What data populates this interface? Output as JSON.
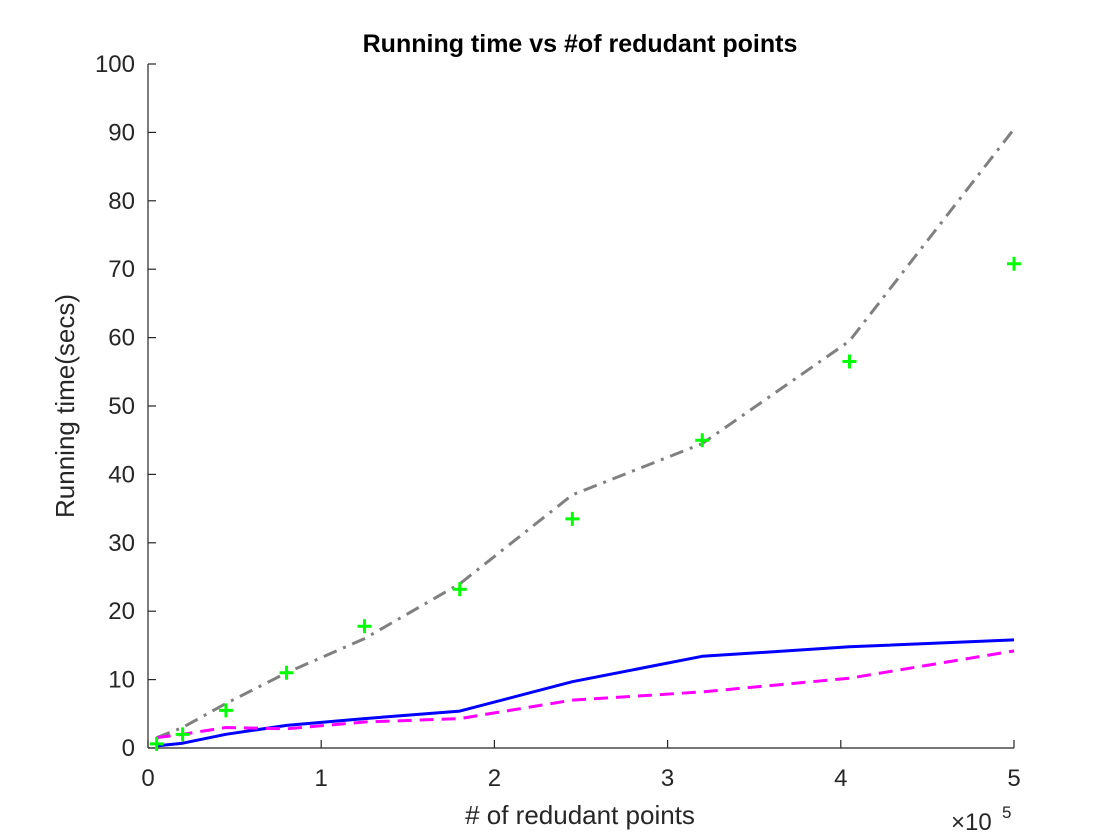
{
  "chart_data": {
    "type": "line",
    "title": "Running time vs #of redudant points",
    "xlabel": "# of redudant points",
    "ylabel": "Running time(secs)",
    "x_exponent_label": "×10",
    "x_exponent_power": "5",
    "xlim": [
      0,
      5
    ],
    "ylim": [
      0,
      100
    ],
    "x_ticks": [
      "0",
      "1",
      "2",
      "3",
      "4",
      "5"
    ],
    "y_ticks": [
      "0",
      "10",
      "20",
      "30",
      "40",
      "50",
      "60",
      "70",
      "80",
      "90",
      "100"
    ],
    "grid": false,
    "legend": "none",
    "x_units_note": "x values in units of 10^5 redundant points",
    "series": [
      {
        "style": "dash-dot",
        "color": "#808080",
        "marker": "none",
        "x": [
          0.05,
          0.2,
          0.45,
          0.8,
          1.25,
          1.8,
          2.45,
          3.2,
          4.05,
          5.0
        ],
        "y": [
          1.5,
          3.0,
          6.5,
          11.0,
          16.0,
          24.0,
          37.0,
          44.5,
          59.5,
          90.5
        ]
      },
      {
        "style": "solid",
        "color": "#0000FF",
        "marker": "none",
        "x": [
          0.05,
          0.2,
          0.45,
          0.8,
          1.25,
          1.8,
          2.45,
          3.2,
          4.05,
          5.0
        ],
        "y": [
          0.3,
          0.7,
          2.0,
          3.3,
          4.3,
          5.4,
          9.7,
          13.4,
          14.8,
          15.8
        ]
      },
      {
        "style": "dashed",
        "color": "#FF00FF",
        "marker": "none",
        "x": [
          0.05,
          0.2,
          0.45,
          0.8,
          1.25,
          1.8,
          2.45,
          3.2,
          4.05,
          5.0
        ],
        "y": [
          1.5,
          2.0,
          3.0,
          2.8,
          3.8,
          4.3,
          7.0,
          8.2,
          10.2,
          14.2
        ]
      },
      {
        "style": "markers",
        "color": "#00FF00",
        "marker": "+",
        "x": [
          0.05,
          0.2,
          0.45,
          0.8,
          1.25,
          1.8,
          2.45,
          3.2,
          4.05,
          5.0
        ],
        "y": [
          0.6,
          2.0,
          5.5,
          11.0,
          17.8,
          23.2,
          33.5,
          45.0,
          56.5,
          70.8
        ]
      }
    ]
  }
}
